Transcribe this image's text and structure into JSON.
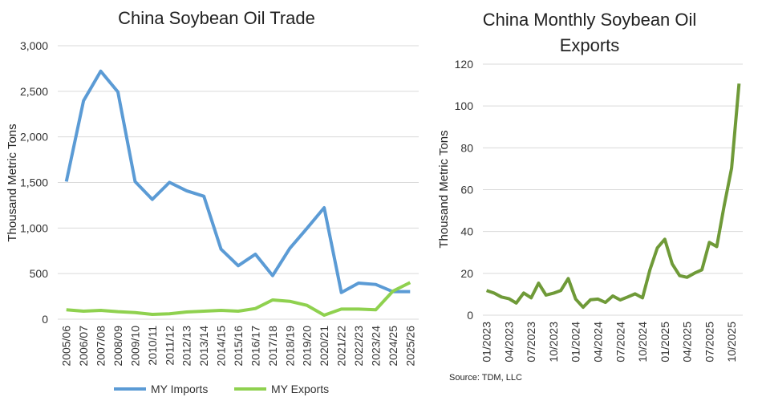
{
  "chart_data": [
    {
      "type": "line",
      "title": "China Soybean Oil Trade",
      "xlabel": "",
      "ylabel": "Thousand Metric Tons",
      "ylim": [
        0,
        3000
      ],
      "yticks": [
        "0",
        "500",
        "1,000",
        "1,500",
        "2,000",
        "2,500",
        "3,000"
      ],
      "grid": true,
      "legend": "bottom",
      "categories": [
        "2005/06",
        "2006/07",
        "2007/08",
        "2008/09",
        "2009/10",
        "2010/11",
        "2011/12",
        "2012/13",
        "2013/14",
        "2014/15",
        "2015/16",
        "2016/17",
        "2017/18",
        "2018/19",
        "2019/20",
        "2020/21",
        "2021/22",
        "2022/23",
        "2023/24",
        "2024/25",
        "2025/26"
      ],
      "series": [
        {
          "name": "MY Imports",
          "color": "#5B9BD5",
          "values": [
            1510,
            2396,
            2721,
            2493,
            1510,
            1314,
            1501,
            1408,
            1349,
            768,
            587,
            713,
            478,
            777,
            997,
            1223,
            293,
            396,
            381,
            302,
            302
          ]
        },
        {
          "name": "MY Exports",
          "color": "#8FD14F",
          "values": [
            103,
            88,
            97,
            82,
            73,
            53,
            59,
            79,
            88,
            97,
            88,
            117,
            211,
            196,
            152,
            44,
            111,
            111,
            103,
            308,
            402
          ]
        }
      ]
    },
    {
      "type": "line",
      "title": "China Monthly Soybean Oil Exports",
      "title_lines": [
        "China Monthly Soybean Oil",
        "Exports"
      ],
      "xlabel": "",
      "ylabel": "Thousand Metric Tons",
      "ylim": [
        0,
        120
      ],
      "yticks": [
        "0",
        "20",
        "40",
        "60",
        "80",
        "100",
        "120"
      ],
      "grid": true,
      "xtick_labels": [
        "01/2023",
        "04/2023",
        "07/2023",
        "10/2023",
        "01/2024",
        "04/2024",
        "07/2024",
        "10/2024",
        "01/2025",
        "04/2025",
        "07/2025",
        "10/2025"
      ],
      "series": [
        {
          "name": "Monthly Exports",
          "color": "#6F9A38",
          "values": [
            11.8,
            10.6,
            8.7,
            7.9,
            5.8,
            10.6,
            8.3,
            15.3,
            9.6,
            10.5,
            11.8,
            17.5,
            7.7,
            3.8,
            7.4,
            7.7,
            6.1,
            9.2,
            7.3,
            8.7,
            10.2,
            8.3,
            21.7,
            32.2,
            36.3,
            24.5,
            18.9,
            18.1,
            20.1,
            21.7,
            34.8,
            32.8,
            52.4,
            70.3,
            110.7
          ]
        }
      ],
      "source": "Source: TDM, LLC"
    }
  ]
}
